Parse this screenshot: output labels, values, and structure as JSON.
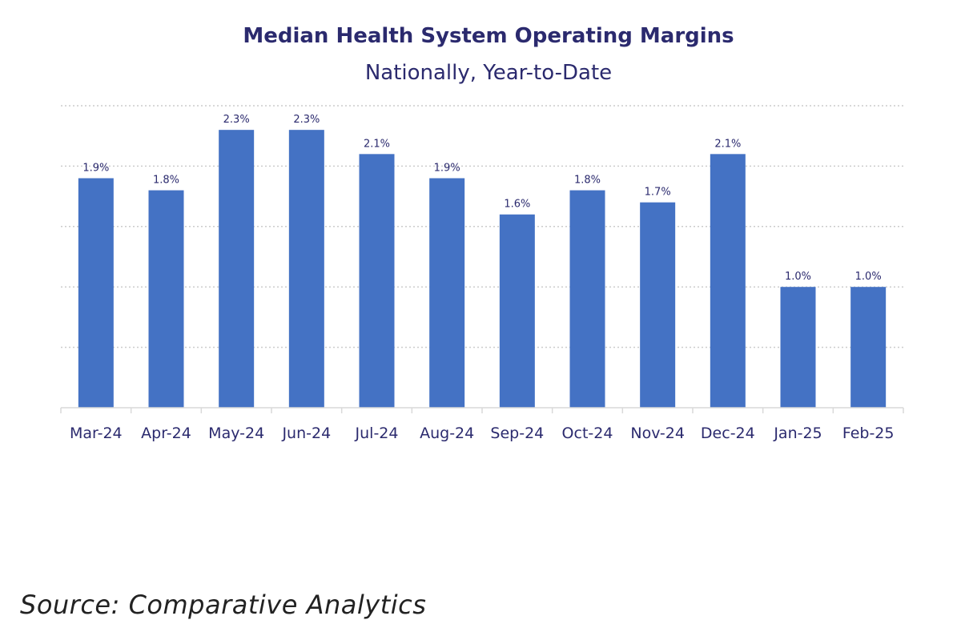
{
  "chart_data": {
    "type": "bar",
    "title": "Median Health System Operating Margins",
    "subtitle": "Nationally, Year-to-Date",
    "categories": [
      "Mar-24",
      "Apr-24",
      "May-24",
      "Jun-24",
      "Jul-24",
      "Aug-24",
      "Sep-24",
      "Oct-24",
      "Nov-24",
      "Dec-24",
      "Jan-25",
      "Feb-25"
    ],
    "values": [
      1.9,
      1.8,
      2.3,
      2.3,
      2.1,
      1.9,
      1.6,
      1.8,
      1.7,
      2.1,
      1.0,
      1.0
    ],
    "data_labels": [
      "1.9%",
      "1.8%",
      "2.3%",
      "2.3%",
      "2.1%",
      "1.9%",
      "1.6%",
      "1.8%",
      "1.7%",
      "2.1%",
      "1.0%",
      "1.0%"
    ],
    "ylim": [
      0,
      2.5
    ],
    "grid": true,
    "legend": "none",
    "bar_color": "#4472c4",
    "text_color": "#2b2a6e",
    "gridline_color": "#cccccc"
  },
  "source": "Source: Comparative Analytics"
}
